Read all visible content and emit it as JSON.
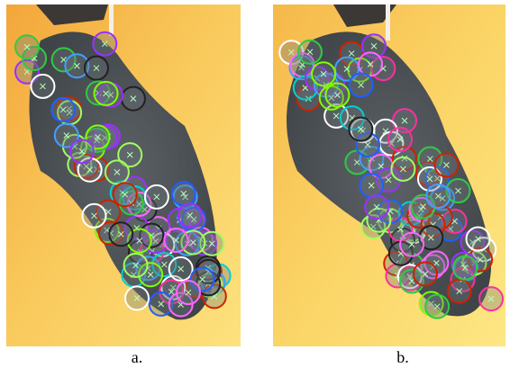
{
  "figure": {
    "panels": [
      {
        "caption": "a."
      },
      {
        "caption": "b."
      }
    ]
  }
}
